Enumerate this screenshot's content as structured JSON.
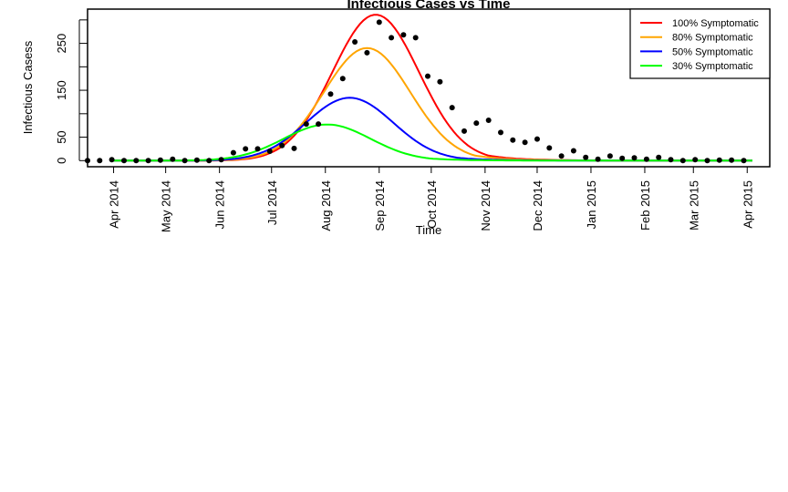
{
  "chart_data": {
    "type": "line",
    "title": "Infectious Cases vs Time",
    "xlabel": "Time",
    "ylabel": "Infectious Casess",
    "xlim": [
      "2014-03-17",
      "2015-04-14"
    ],
    "ylim": [
      -13,
      323
    ],
    "x_ticks": [
      "2014-04-01",
      "2014-05-01",
      "2014-06-01",
      "2014-07-01",
      "2014-08-01",
      "2014-09-01",
      "2014-10-01",
      "2014-11-01",
      "2014-12-01",
      "2015-01-01",
      "2015-02-01",
      "2015-03-01",
      "2015-04-01"
    ],
    "x_tick_labels": [
      "Apr 2014",
      "May 2014",
      "Jun 2014",
      "Jul 2014",
      "Aug 2014",
      "Sep 2014",
      "Oct 2014",
      "Nov 2014",
      "Dec 2014",
      "Jan 2015",
      "Feb 2015",
      "Mar 2015",
      "Apr 2015"
    ],
    "y_ticks": [
      0,
      50,
      100,
      150,
      200,
      250,
      300
    ],
    "y_tick_labels": [
      "0",
      "50",
      "",
      "150",
      "",
      "250",
      ""
    ],
    "legend_position": "top-right",
    "series": [
      {
        "name": "100% Symptomatic",
        "color": "#ff0000",
        "peak_date": "2014-08-30",
        "peak": 311,
        "sigma_days": 25,
        "decay_days": 31
      },
      {
        "name": "80% Symptomatic",
        "color": "#ffa500",
        "peak_date": "2014-08-25",
        "peak": 240,
        "sigma_days": 25,
        "decay_days": 32
      },
      {
        "name": "50% Symptomatic",
        "color": "#0000ff",
        "peak_date": "2014-08-15",
        "peak": 134,
        "sigma_days": 25,
        "decay_days": 32
      },
      {
        "name": "30% Symptomatic",
        "color": "#00ff00",
        "peak_date": "2014-08-02",
        "peak": 77,
        "sigma_days": 25,
        "decay_days": 33
      }
    ],
    "observed": {
      "x": [
        "2014-03-17",
        "2014-03-24",
        "2014-03-31",
        "2014-04-07",
        "2014-04-14",
        "2014-04-21",
        "2014-04-28",
        "2014-05-05",
        "2014-05-12",
        "2014-05-19",
        "2014-05-26",
        "2014-06-02",
        "2014-06-09",
        "2014-06-16",
        "2014-06-23",
        "2014-06-30",
        "2014-07-07",
        "2014-07-14",
        "2014-07-21",
        "2014-07-28",
        "2014-08-04",
        "2014-08-11",
        "2014-08-18",
        "2014-08-25",
        "2014-09-01",
        "2014-09-08",
        "2014-09-15",
        "2014-09-22",
        "2014-09-29",
        "2014-10-06",
        "2014-10-13",
        "2014-10-20",
        "2014-10-27",
        "2014-11-03",
        "2014-11-10",
        "2014-11-17",
        "2014-11-24",
        "2014-12-01",
        "2014-12-08",
        "2014-12-15",
        "2014-12-22",
        "2014-12-29",
        "2015-01-05",
        "2015-01-12",
        "2015-01-19",
        "2015-01-26",
        "2015-02-02",
        "2015-02-09",
        "2015-02-16",
        "2015-02-23",
        "2015-03-02",
        "2015-03-09",
        "2015-03-16",
        "2015-03-23",
        "2015-03-30"
      ],
      "y": [
        0,
        0,
        2,
        0,
        0,
        0,
        1,
        3,
        0,
        1,
        0,
        2,
        17,
        25,
        25,
        20,
        32,
        26,
        78,
        78,
        142,
        175,
        253,
        230,
        295,
        262,
        268,
        262,
        180,
        168,
        113,
        63,
        80,
        86,
        60,
        44,
        39,
        46,
        27,
        10,
        21,
        7,
        3,
        10,
        5,
        6,
        3,
        7,
        2,
        0,
        2,
        0,
        1,
        1,
        0
      ]
    }
  }
}
